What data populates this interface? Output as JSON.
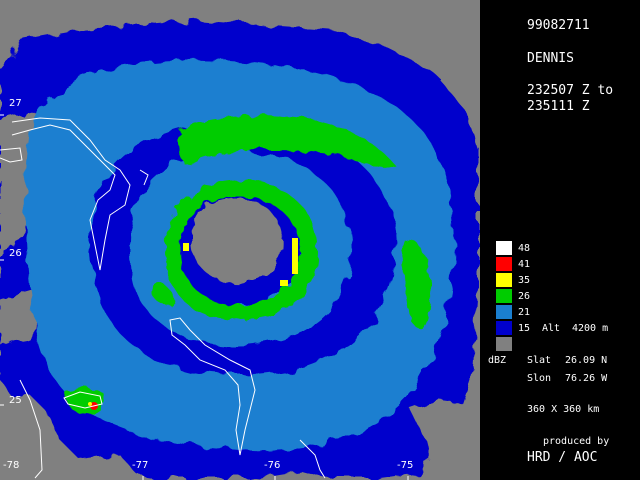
{
  "info": {
    "datetime_code": "99082711",
    "storm_name": "DENNIS",
    "time_range_line1": "232507 Z to",
    "time_range_line2": "235111 Z"
  },
  "legend": {
    "unit": "dBZ",
    "altitude_label": "Alt",
    "altitude_value": "4200 m",
    "levels": [
      {
        "value": "48",
        "color": "#ffffff"
      },
      {
        "value": "41",
        "color": "#ff0000"
      },
      {
        "value": "35",
        "color": "#ffff00"
      },
      {
        "value": "26",
        "color": "#00cc00"
      },
      {
        "value": "21",
        "color": "#1a7fd0"
      },
      {
        "value": "15",
        "color": "#0000cc"
      },
      {
        "value": "",
        "color": "#808080"
      }
    ]
  },
  "location": {
    "slat_label": "Slat",
    "slat_value": "26.09 N",
    "slon_label": "Slon",
    "slon_value": "76.26 W",
    "domain_size": "360 X 360 km"
  },
  "credit": {
    "line1": "produced by",
    "line2": "HRD / AOC"
  },
  "axes": {
    "lat_ticks": [
      "27",
      "26",
      "25"
    ],
    "lon_ticks": [
      "-78",
      "-77",
      "-76",
      "-75"
    ]
  },
  "colors": {
    "no_echo": "#808080",
    "light": "#0000cc",
    "moderate": "#1a7fd0",
    "heavy": "#00cc00",
    "very_heavy": "#ffff00",
    "intense": "#ff0000",
    "extreme": "#ffffff"
  }
}
